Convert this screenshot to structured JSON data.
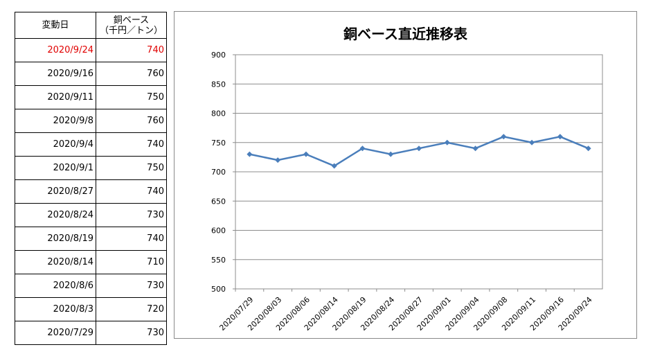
{
  "table": {
    "headers": {
      "date": "変動日",
      "price_line1": "銅ベース",
      "price_line2": "（千円／トン）"
    },
    "rows": [
      {
        "date": "2020/9/24",
        "price": "740",
        "highlight": true
      },
      {
        "date": "2020/9/16",
        "price": "760"
      },
      {
        "date": "2020/9/11",
        "price": "750"
      },
      {
        "date": "2020/9/8",
        "price": "760"
      },
      {
        "date": "2020/9/4",
        "price": "740"
      },
      {
        "date": "2020/9/1",
        "price": "750"
      },
      {
        "date": "2020/8/27",
        "price": "740"
      },
      {
        "date": "2020/8/24",
        "price": "730"
      },
      {
        "date": "2020/8/19",
        "price": "740"
      },
      {
        "date": "2020/8/14",
        "price": "710"
      },
      {
        "date": "2020/8/6",
        "price": "730"
      },
      {
        "date": "2020/8/3",
        "price": "720"
      },
      {
        "date": "2020/7/29",
        "price": "730"
      }
    ],
    "highlight_color": "#e00000"
  },
  "chart_data": {
    "type": "line",
    "title": "銅ベース直近推移表",
    "categories": [
      "2020/07/29",
      "2020/08/03",
      "2020/08/06",
      "2020/08/14",
      "2020/08/19",
      "2020/08/24",
      "2020/08/27",
      "2020/09/01",
      "2020/09/04",
      "2020/09/08",
      "2020/09/11",
      "2020/09/16",
      "2020/09/24"
    ],
    "series": [
      {
        "values": [
          730,
          720,
          730,
          710,
          740,
          730,
          740,
          750,
          740,
          760,
          750,
          760,
          740
        ],
        "color": "#4a7ebb",
        "marker": "diamond"
      }
    ],
    "ylim": [
      500,
      900
    ],
    "yticks": [
      500,
      550,
      600,
      650,
      700,
      750,
      800,
      850,
      900
    ],
    "grid": true,
    "legend": "none"
  }
}
